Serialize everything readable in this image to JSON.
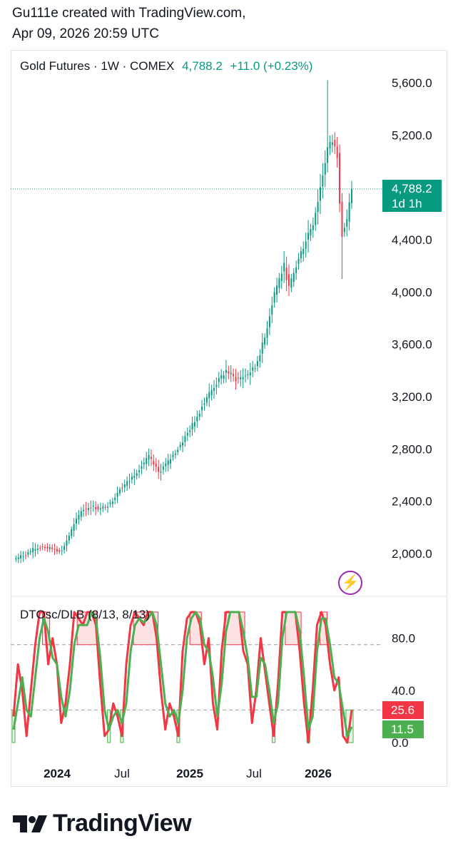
{
  "header": {
    "line1": "Gu111e created with TradingView.com,",
    "line2": "Apr 09, 2026 20:59 UTC"
  },
  "legend": {
    "symbol": "Gold Futures · 1W · COMEX",
    "price": "4,788.2",
    "change": "+11.0 (+0.23%)"
  },
  "price_tag": {
    "price": "4,788.2",
    "countdown": "1d 1h"
  },
  "indicator": {
    "title": "DTOsc/DLB (8/13, 8/13)",
    "value_red": "25.6",
    "value_green": "11.5"
  },
  "brand": {
    "name": "TradingView"
  },
  "colors": {
    "up": "#089981",
    "down": "#f23645",
    "osc_fast": "#f23645",
    "osc_slow": "#4caf50",
    "bolt": "#9c27b0"
  },
  "icons": {
    "bolt": "lightning-bolt-icon",
    "logo": "tradingview-logo-icon"
  },
  "chart_data": [
    {
      "type": "candlestick",
      "title": "Gold Futures · 1W · COMEX",
      "y_ticks": [
        2000,
        2400,
        2800,
        3200,
        3600,
        4000,
        4400,
        5200,
        5600
      ],
      "y_tick_labels": [
        "2,000.0",
        "2,400.0",
        "2,800.0",
        "3,200.0",
        "3,600.0",
        "4,000.0",
        "4,400.0",
        "5,200.0",
        "5,600.0"
      ],
      "ylim": [
        1780,
        5700
      ],
      "x_tick_labels": [
        "2024",
        "Jul",
        "2025",
        "Jul",
        "2026"
      ],
      "last_price": 4788.2,
      "close_path": [
        [
          0,
          1955
        ],
        [
          4,
          1985
        ],
        [
          8,
          2030
        ],
        [
          12,
          2050
        ],
        [
          16,
          2035
        ],
        [
          20,
          2020
        ],
        [
          24,
          2180
        ],
        [
          28,
          2330
        ],
        [
          32,
          2360
        ],
        [
          36,
          2340
        ],
        [
          40,
          2380
        ],
        [
          44,
          2500
        ],
        [
          48,
          2560
        ],
        [
          52,
          2650
        ],
        [
          56,
          2740
        ],
        [
          60,
          2620
        ],
        [
          64,
          2700
        ],
        [
          68,
          2800
        ],
        [
          72,
          2920
        ],
        [
          76,
          3050
        ],
        [
          80,
          3200
        ],
        [
          84,
          3300
        ],
        [
          88,
          3400
        ],
        [
          92,
          3330
        ],
        [
          96,
          3360
        ],
        [
          100,
          3420
        ],
        [
          104,
          3650
        ],
        [
          108,
          4000
        ],
        [
          112,
          4200
        ],
        [
          114,
          4030
        ],
        [
          118,
          4250
        ],
        [
          122,
          4450
        ],
        [
          124,
          4530
        ],
        [
          126,
          4700
        ],
        [
          128,
          4900
        ],
        [
          130,
          5100
        ],
        [
          132,
          5150
        ],
        [
          134,
          5050
        ],
        [
          135,
          4700
        ],
        [
          136,
          4450
        ],
        [
          137,
          4500
        ],
        [
          138,
          4560
        ],
        [
          139,
          4670
        ],
        [
          140,
          4790
        ]
      ],
      "notable_wicks": {
        "high_peak": 5620,
        "low_dip": 4100,
        "week_of_high": 130
      }
    },
    {
      "type": "line",
      "title": "DTOsc/DLB (8/13, 8/13)",
      "y_ticks": [
        0,
        40,
        80
      ],
      "y_tick_labels": [
        "0.0",
        "40.0",
        "80.0"
      ],
      "ylim": [
        0,
        100
      ],
      "levels": [
        25,
        75
      ],
      "series": [
        {
          "name": "",
          "values": [
            20,
            60,
            40,
            5,
            40,
            75,
            100,
            100,
            60,
            80,
            60,
            15,
            30,
            60,
            100,
            95,
            90,
            100,
            100,
            90,
            45,
            5,
            10,
            30,
            20,
            5,
            60,
            90,
            100,
            95,
            90,
            100,
            100,
            80,
            40,
            10,
            30,
            20,
            5,
            70,
            95,
            100,
            100,
            90,
            60,
            80,
            30,
            10,
            70,
            100,
            100,
            100,
            100,
            70,
            60,
            15,
            40,
            80,
            55,
            30,
            5,
            45,
            100,
            100,
            100,
            100,
            70,
            30,
            0,
            40,
            90,
            100,
            90,
            60,
            40,
            50,
            5,
            0,
            25
          ]
        },
        {
          "name": "",
          "values": [
            10,
            30,
            50,
            25,
            20,
            50,
            80,
            95,
            85,
            65,
            60,
            35,
            20,
            40,
            75,
            90,
            90,
            90,
            100,
            95,
            65,
            25,
            10,
            20,
            25,
            15,
            30,
            70,
            90,
            95,
            92,
            95,
            100,
            90,
            60,
            30,
            20,
            25,
            15,
            40,
            80,
            95,
            100,
            95,
            75,
            70,
            50,
            20,
            45,
            85,
            100,
            100,
            100,
            85,
            65,
            35,
            35,
            65,
            60,
            40,
            15,
            30,
            80,
            100,
            100,
            100,
            85,
            50,
            10,
            20,
            70,
            95,
            95,
            75,
            50,
            45,
            25,
            5,
            12
          ]
        }
      ],
      "boxes": "shaded over-bought (red) / over-sold (green) regions"
    }
  ]
}
